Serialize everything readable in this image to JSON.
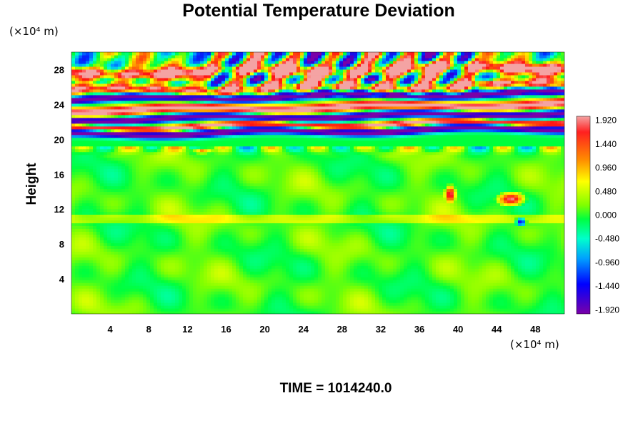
{
  "chart_data": {
    "type": "heatmap",
    "title": "Potential Temperature Deviation",
    "ylabel": "Height",
    "xlabel": "",
    "x_unit": "(×10⁴ m)",
    "y_unit": "(×10⁴ m)",
    "xlim": [
      0,
      51
    ],
    "ylim": [
      0,
      30
    ],
    "x_ticks": [
      4,
      8,
      12,
      16,
      20,
      24,
      28,
      32,
      36,
      40,
      44,
      48
    ],
    "y_ticks": [
      4,
      8,
      12,
      16,
      20,
      24,
      28
    ],
    "colorbar": {
      "min": -2.0,
      "max": 2.0,
      "labels": [
        "1.920",
        "1.440",
        "0.960",
        "0.480",
        "0.000",
        "-0.480",
        "-0.960",
        "-1.440",
        "-1.920"
      ],
      "label_values": [
        1.92,
        1.44,
        0.96,
        0.48,
        0.0,
        -0.48,
        -0.96,
        -1.44,
        -1.92
      ],
      "colors": [
        "#f4a3a3",
        "#ff0000",
        "#ff8c00",
        "#ffff00",
        "#00ff00",
        "#00ffff",
        "#0000ff",
        "#800080"
      ]
    },
    "description_values": {
      "lower_domain_value": 0.1,
      "bands": [
        {
          "y": 20.6,
          "value": -2.0
        },
        {
          "y": 21.3,
          "value": 2.0
        },
        {
          "y": 22.3,
          "value": -2.0
        },
        {
          "y": 23.2,
          "value": 2.0
        },
        {
          "y": 24.5,
          "value": -2.0
        },
        {
          "y": 25.5,
          "value": 1.5
        },
        {
          "y": 27.5,
          "value": 2.0
        }
      ]
    },
    "footer": "TIME = 1014240.0"
  }
}
